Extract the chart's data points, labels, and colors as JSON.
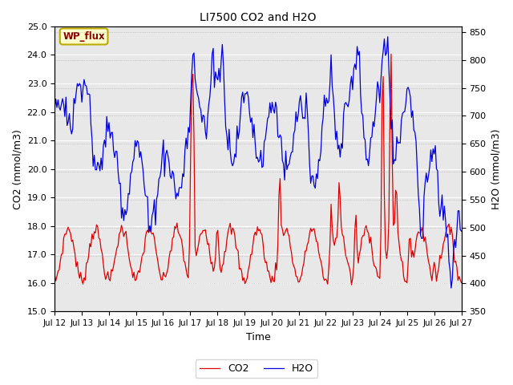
{
  "title": "LI7500 CO2 and H2O",
  "xlabel": "Time",
  "ylabel_left": "CO2 (mmol/m3)",
  "ylabel_right": "H2O (mmol/m3)",
  "co2_color": "#DD0000",
  "h2o_color": "#0000DD",
  "co2_ylim": [
    15.0,
    25.0
  ],
  "h2o_ylim": [
    350,
    860
  ],
  "background_color": "#E8E8E8",
  "fig_background": "#FFFFFF",
  "annotation_text": "WP_flux",
  "annotation_bg": "#FFFFCC",
  "annotation_border": "#BBAA00",
  "x_tick_labels": [
    "Jul 12",
    "Jul 13",
    "Jul 14",
    "Jul 15",
    "Jul 16",
    "Jul 17",
    "Jul 18",
    "Jul 19",
    "Jul 20",
    "Jul 21",
    "Jul 22",
    "Jul 23",
    "Jul 24",
    "Jul 25",
    "Jul 26",
    "Jul 27"
  ],
  "y_left_ticks": [
    15.0,
    16.0,
    17.0,
    18.0,
    19.0,
    20.0,
    21.0,
    22.0,
    23.0,
    24.0,
    25.0
  ],
  "y_right_ticks": [
    350,
    400,
    450,
    500,
    550,
    600,
    650,
    700,
    750,
    800,
    850
  ],
  "legend_co2": "CO2",
  "legend_h2o": "H2O"
}
